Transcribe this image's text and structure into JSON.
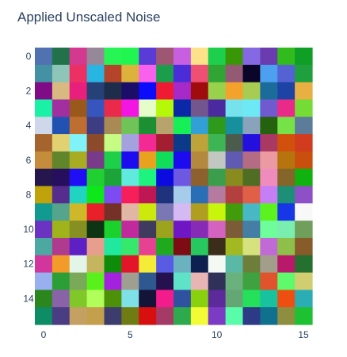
{
  "chart_data": {
    "type": "heatmap",
    "title": "Applied Unscaled Noise",
    "xlabel": "",
    "ylabel": "",
    "x_ticks": [
      "0",
      "5",
      "10",
      "15"
    ],
    "y_ticks": [
      "0",
      "2",
      "4",
      "6",
      "8",
      "10",
      "12",
      "14"
    ],
    "grid": false,
    "legend": "none",
    "cells_rgb_hex": [
      [
        "#5072b0",
        "#21724a",
        "#d3398e",
        "#968898",
        "#27f556",
        "#21f650",
        "#5a3bd5",
        "#9e5673",
        "#c85fe1",
        "#fee28a",
        "#1ecf4e",
        "#399707",
        "#8568e3",
        "#6a3cb0",
        "#31bb1c",
        "#0f9e26"
      ],
      [
        "#4391a2",
        "#8dc5b8",
        "#ec3064",
        "#29b5e2",
        "#b4442a",
        "#ddb23c",
        "#f960eb",
        "#1c9d4c",
        "#4a2cd8",
        "#f04f74",
        "#31a436",
        "#955a73",
        "#0b0528",
        "#4d9ff0",
        "#5462d3",
        "#1f9f3e"
      ],
      [
        "#7f0c86",
        "#d7b981",
        "#e81f7c",
        "#254176",
        "#1d2d4a",
        "#1a0e68",
        "#0a0cfa",
        "#ef1b33",
        "#a62ac8",
        "#a00c0e",
        "#98d14c",
        "#f3a32c",
        "#a8cb51",
        "#1b6c9a",
        "#1d44a5",
        "#e8b042"
      ],
      [
        "#1bf0a7",
        "#a22fa0",
        "#99581c",
        "#3656be",
        "#e92a4a",
        "#f315e1",
        "#e5fdc9",
        "#b5f908",
        "#0b29a7",
        "#73568e",
        "#4a2a9e",
        "#76e2ec",
        "#6ce9f5",
        "#6f5ad0",
        "#e92a89",
        "#75db35"
      ],
      [
        "#cfd8ea",
        "#2152b2",
        "#bf6e31",
        "#3d3d84",
        "#aa8a54",
        "#70c457",
        "#1c8f33",
        "#b8a36d",
        "#16ef55",
        "#32a0d6",
        "#2e9a1c",
        "#17909e",
        "#8aa2bc",
        "#24620e",
        "#77e247",
        "#5d7c99"
      ],
      [
        "#a5642d",
        "#e1d170",
        "#7ff3f7",
        "#8c4a2a",
        "#c7fc84",
        "#a3a2de",
        "#f32a93",
        "#a51d31",
        "#0a3a88",
        "#bea23a",
        "#3eb555",
        "#4c5c4c",
        "#2410de",
        "#a93863",
        "#d0500c",
        "#d23c1e"
      ],
      [
        "#c58c3b",
        "#61852b",
        "#a7ac23",
        "#7a3a8a",
        "#1ecf4a",
        "#1e0cf1",
        "#e9a21d",
        "#10dd58",
        "#1d0bf0",
        "#b4893d",
        "#c3c7c2",
        "#5f5bb3",
        "#b36c84",
        "#ec9aa2",
        "#b7740e",
        "#c84f0d"
      ],
      [
        "#25174e",
        "#26105d",
        "#1f0ff4",
        "#1fd030",
        "#1da438",
        "#60eadd",
        "#1ef27f",
        "#0b0be0",
        "#6d59e1",
        "#8c612d",
        "#3a9e4d",
        "#8a8b1f",
        "#4f6e24",
        "#f08bbe",
        "#85662a",
        "#0fb20f"
      ],
      [
        "#c0a20a",
        "#562c8c",
        "#21d4c1",
        "#0ee719",
        "#7c4bf2",
        "#f71f59",
        "#bf1753",
        "#1e337b",
        "#a6ccea",
        "#2a6fb6",
        "#b47aa0",
        "#b33f3f",
        "#e06047",
        "#c67ef4",
        "#1e8f77",
        "#8d50c7"
      ],
      [
        "#119b90",
        "#55a48e",
        "#ceb82a",
        "#e72029",
        "#753128",
        "#e2b6a5",
        "#cce90c",
        "#7a78b4",
        "#d5b9f2",
        "#b09e21",
        "#c8f50c",
        "#429b0a",
        "#49b8c5",
        "#5cf21e",
        "#1636e7",
        "#f8f8f8"
      ],
      [
        "#6a33c1",
        "#9fb31a",
        "#868f22",
        "#0d3513",
        "#1bd22c",
        "#c12a9c",
        "#3e3b5e",
        "#9ca31c",
        "#6f17c4",
        "#872bb6",
        "#d363bf",
        "#7b5c37",
        "#457ea4",
        "#6ffc9b",
        "#7aeeaf",
        "#6f9f5b"
      ],
      [
        "#4ba9a2",
        "#ae3b8d",
        "#5e1fc4",
        "#e89e8c",
        "#21e89f",
        "#36e86b",
        "#e74191",
        "#1fa91f",
        "#7e0c15",
        "#27c95e",
        "#3c2d1b",
        "#a3b921",
        "#d5e27e",
        "#c06ad6",
        "#8ebf48",
        "#865c2a"
      ],
      [
        "#d1369d",
        "#f39b2a",
        "#e3f5e9",
        "#c6b55f",
        "#0f8b0b",
        "#e3152b",
        "#f4ec37",
        "#585be4",
        "#6bb2c1",
        "#0e2050",
        "#f4f9f4",
        "#5ab9a6",
        "#6d7d3a",
        "#a39d8b",
        "#b8196a",
        "#256f2f"
      ],
      [
        "#98aff0",
        "#2b9f36",
        "#7ba95a",
        "#59f11b",
        "#a422dd",
        "#9e9f90",
        "#2d5990",
        "#24114e",
        "#5ee3c8",
        "#e8b5b4",
        "#2f3158",
        "#6bb17e",
        "#3fa240",
        "#e0532c",
        "#5ef96c",
        "#d0ce70"
      ],
      [
        "#2b861e",
        "#8a62a8",
        "#80c82a",
        "#b1fd5a",
        "#4d9109",
        "#7ee1e7",
        "#141438",
        "#f41b8d",
        "#2e52a0",
        "#89d00e",
        "#5c2a99",
        "#64a774",
        "#24e05b",
        "#17c29e",
        "#ee4f11",
        "#2aadb3"
      ],
      [
        "#0e8c63",
        "#4a3d84",
        "#c4a062",
        "#c4a04d",
        "#3d3d6d",
        "#6f7c14",
        "#d70f0f",
        "#a43a65",
        "#2fa94d",
        "#f3fb34",
        "#7c3bc5",
        "#58fca9",
        "#2d3a86",
        "#10718e",
        "#8e8e41",
        "#1ec131"
      ]
    ]
  }
}
